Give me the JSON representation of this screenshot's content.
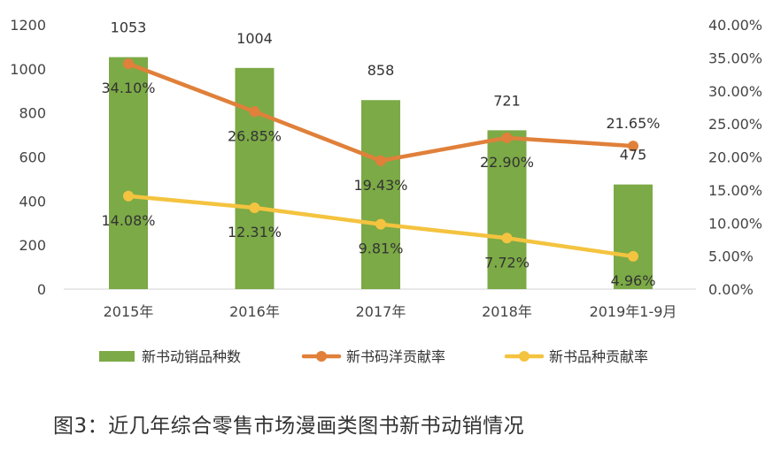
{
  "caption": "图3：近几年综合零售市场漫画类图书新书动销情况",
  "chart_data": {
    "type": "bar",
    "categories": [
      "2015年",
      "2016年",
      "2017年",
      "2018年",
      "2019年1-9月"
    ],
    "y_left": {
      "min": 0,
      "max": 1200,
      "ticks": [
        "0",
        "200",
        "400",
        "600",
        "800",
        "1000",
        "1200"
      ]
    },
    "y_right": {
      "min": 0,
      "max": 40,
      "ticks": [
        "0.00%",
        "5.00%",
        "10.00%",
        "15.00%",
        "20.00%",
        "25.00%",
        "30.00%",
        "35.00%",
        "40.00%"
      ]
    },
    "series": [
      {
        "name": "新书动销品种数",
        "type": "bar",
        "axis": "left",
        "color": "#7caa46",
        "values": [
          1053,
          1004,
          858,
          721,
          475
        ],
        "labels": [
          "1053",
          "1004",
          "858",
          "721",
          "475"
        ]
      },
      {
        "name": "新书码洋贡献率",
        "type": "line",
        "axis": "right",
        "color": "#e0803a",
        "values": [
          34.1,
          26.85,
          19.43,
          22.9,
          21.65
        ],
        "labels": [
          "34.10%",
          "26.85%",
          "19.43%",
          "22.90%",
          "21.65%"
        ]
      },
      {
        "name": "新书品种贡献率",
        "type": "line",
        "axis": "right",
        "color": "#f4c33f",
        "values": [
          14.08,
          12.31,
          9.81,
          7.72,
          4.96
        ],
        "labels": [
          "14.08%",
          "12.31%",
          "9.81%",
          "7.72%",
          "4.96%"
        ]
      }
    ],
    "grid": false,
    "legend": "bottom"
  }
}
